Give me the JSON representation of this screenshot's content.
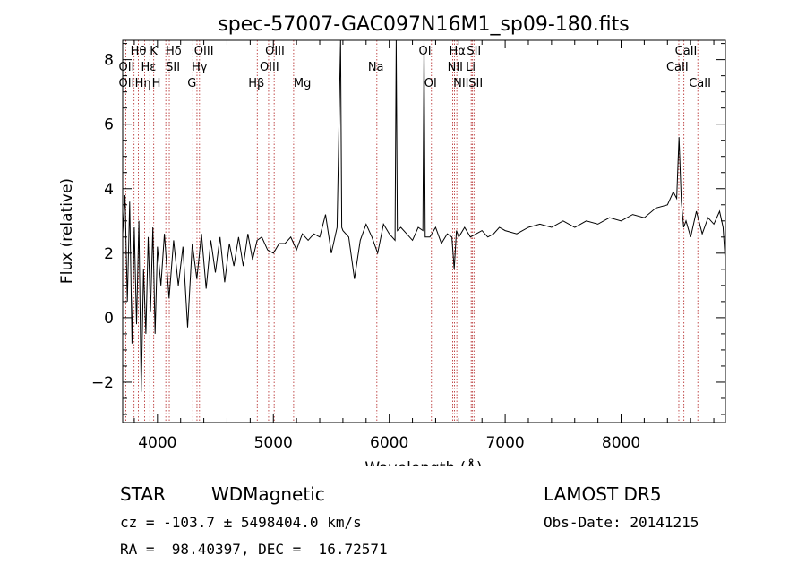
{
  "chart_data": {
    "type": "line",
    "title": "spec-57007-GAC097N16M1_sp09-180.fits",
    "xlabel": "Wavelength (Å)",
    "ylabel": "Flux (relative)",
    "xlim": [
      3700,
      8900
    ],
    "ylim": [
      -3.25,
      8.6
    ],
    "xticks": [
      4000,
      5000,
      6000,
      7000,
      8000
    ],
    "yticks": [
      -2,
      0,
      2,
      4,
      6,
      8
    ],
    "grid": false,
    "series": [
      {
        "style": "black-line",
        "x": [
          3700,
          3720,
          3740,
          3760,
          3780,
          3800,
          3820,
          3840,
          3860,
          3880,
          3900,
          3920,
          3940,
          3960,
          3980,
          4000,
          4030,
          4060,
          4100,
          4140,
          4180,
          4220,
          4260,
          4300,
          4340,
          4380,
          4420,
          4460,
          4500,
          4540,
          4580,
          4620,
          4660,
          4700,
          4740,
          4780,
          4820,
          4860,
          4900,
          4950,
          5000,
          5050,
          5100,
          5150,
          5200,
          5250,
          5300,
          5350,
          5400,
          5450,
          5500,
          5550,
          5580,
          5590,
          5600,
          5650,
          5700,
          5750,
          5800,
          5850,
          5900,
          5950,
          6000,
          6050,
          6060,
          6070,
          6100,
          6150,
          6200,
          6250,
          6290,
          6300,
          6310,
          6350,
          6400,
          6450,
          6500,
          6540,
          6560,
          6580,
          6600,
          6650,
          6700,
          6750,
          6800,
          6850,
          6900,
          6950,
          7000,
          7100,
          7200,
          7300,
          7400,
          7500,
          7600,
          7700,
          7800,
          7900,
          8000,
          8100,
          8200,
          8300,
          8400,
          8450,
          8480,
          8500,
          8520,
          8540,
          8560,
          8600,
          8650,
          8700,
          8750,
          8800,
          8850,
          8880,
          8900
        ],
        "y": [
          2.6,
          3.8,
          0.5,
          3.6,
          -0.8,
          2.8,
          -0.2,
          3.0,
          -2.3,
          1.5,
          -0.5,
          2.5,
          0.2,
          2.8,
          -0.5,
          2.2,
          1.0,
          2.6,
          0.6,
          2.4,
          1.0,
          2.2,
          -0.3,
          2.3,
          1.2,
          2.6,
          0.9,
          2.4,
          1.4,
          2.5,
          1.1,
          2.3,
          1.6,
          2.5,
          1.6,
          2.6,
          1.8,
          2.4,
          2.5,
          2.1,
          2.0,
          2.3,
          2.3,
          2.5,
          2.1,
          2.6,
          2.4,
          2.6,
          2.5,
          3.2,
          2.0,
          2.8,
          8.6,
          2.8,
          2.7,
          2.5,
          1.2,
          2.4,
          2.9,
          2.5,
          2.0,
          2.9,
          2.6,
          2.4,
          8.6,
          2.7,
          2.8,
          2.6,
          2.4,
          2.8,
          2.7,
          8.6,
          2.5,
          2.5,
          2.8,
          2.3,
          2.6,
          2.5,
          1.5,
          2.7,
          2.5,
          2.8,
          2.5,
          2.6,
          2.7,
          2.5,
          2.6,
          2.8,
          2.7,
          2.6,
          2.8,
          2.9,
          2.8,
          3.0,
          2.8,
          3.0,
          2.9,
          3.1,
          3.0,
          3.2,
          3.1,
          3.4,
          3.5,
          3.9,
          3.7,
          5.6,
          3.6,
          2.8,
          3.0,
          2.5,
          3.3,
          2.6,
          3.1,
          2.9,
          3.3,
          2.8,
          1.7
        ]
      }
    ],
    "line_markers": [
      {
        "label": "OII",
        "wl": 3727,
        "row": 2,
        "dx": -8
      },
      {
        "label": "Hθ",
        "wl": 3798,
        "row": 0,
        "dx": -4
      },
      {
        "label": "Hη",
        "wl": 3836,
        "row": 2,
        "dx": -4
      },
      {
        "label": "OII",
        "wl": 3727,
        "row": 1,
        "dx": -8
      },
      {
        "label": "Hε",
        "wl": 3889,
        "row": 1,
        "dx": -4
      },
      {
        "label": "K",
        "wl": 3934,
        "row": 0,
        "dx": 0
      },
      {
        "label": "H",
        "wl": 3968,
        "row": 2,
        "dx": -2
      },
      {
        "label": "Hδ",
        "wl": 4102,
        "row": 0,
        "dx": -4
      },
      {
        "label": "SII",
        "wl": 4072,
        "row": 1,
        "dx": 0
      },
      {
        "label": "G",
        "wl": 4305,
        "row": 2,
        "dx": -6
      },
      {
        "label": "Hγ",
        "wl": 4341,
        "row": 1,
        "dx": -6
      },
      {
        "label": "OIII",
        "wl": 4363,
        "row": 0,
        "dx": -6
      },
      {
        "label": "Hβ",
        "wl": 4861,
        "row": 2,
        "dx": -10
      },
      {
        "label": "OIII",
        "wl": 4959,
        "row": 1,
        "dx": -10
      },
      {
        "label": "OIII",
        "wl": 5007,
        "row": 0,
        "dx": -10
      },
      {
        "label": "Mg",
        "wl": 5175,
        "row": 2,
        "dx": 0
      },
      {
        "label": "Na",
        "wl": 5893,
        "row": 1,
        "dx": -10
      },
      {
        "label": "OI",
        "wl": 6300,
        "row": 0,
        "dx": -6
      },
      {
        "label": "OI",
        "wl": 6364,
        "row": 2,
        "dx": -8
      },
      {
        "label": "NII",
        "wl": 6548,
        "row": 1,
        "dx": -6
      },
      {
        "label": "Hα",
        "wl": 6563,
        "row": 0,
        "dx": -6
      },
      {
        "label": "NII",
        "wl": 6583,
        "row": 2,
        "dx": -4
      },
      {
        "label": "SII",
        "wl": 6716,
        "row": 0,
        "dx": -6
      },
      {
        "label": "Li",
        "wl": 6707,
        "row": 1,
        "dx": -6
      },
      {
        "label": "SII",
        "wl": 6731,
        "row": 2,
        "dx": -6
      },
      {
        "label": "CaII",
        "wl": 8498,
        "row": 1,
        "dx": -14
      },
      {
        "label": "CaII",
        "wl": 8542,
        "row": 0,
        "dx": -10
      },
      {
        "label": "CaII",
        "wl": 8662,
        "row": 2,
        "dx": -10
      }
    ]
  },
  "info": {
    "class_label": "STAR",
    "subclass": "WDMagnetic",
    "survey": "LAMOST DR5",
    "cz": "cz = -103.7 ± 5498404.0 km/s",
    "obs_date": "Obs-Date: 20141215",
    "coords": "RA =  98.40397, DEC =  16.72571"
  },
  "colors": {
    "markers": "#b22222",
    "spectrum": "#000000"
  }
}
